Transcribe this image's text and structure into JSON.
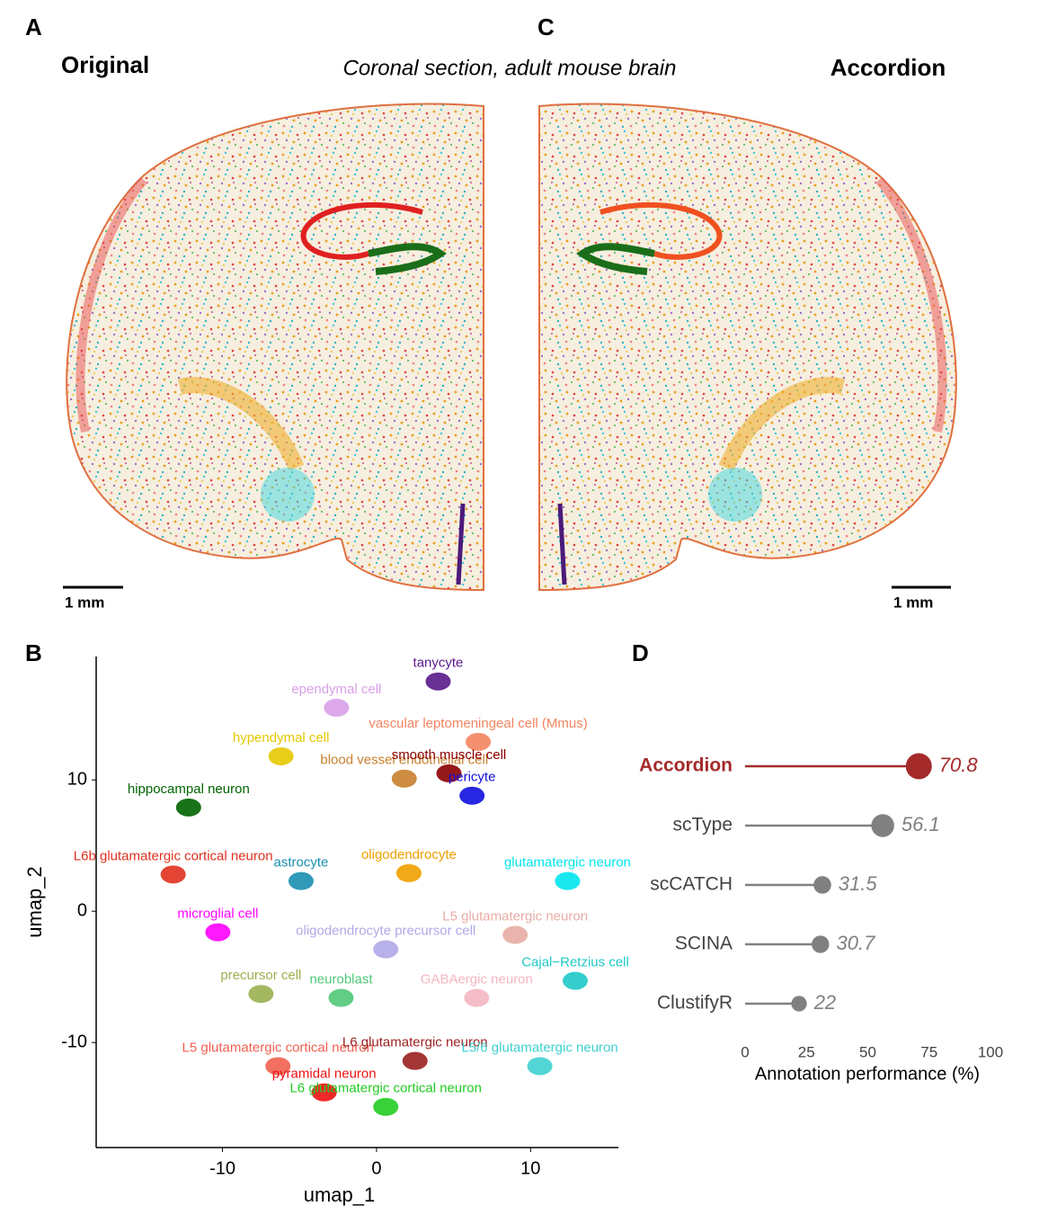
{
  "figure": {
    "panel_a": "A",
    "panel_a_title": "Original",
    "panel_c": "C",
    "subtitle": "Coronal section, adult mouse brain",
    "panel_c_title": "Accordion",
    "scale_left": "1 mm",
    "scale_right": "1 mm",
    "panel_b": "B",
    "panel_d": "D"
  },
  "chart_data": [
    {
      "type": "scatter",
      "xlabel": "umap_1",
      "ylabel": "umap_2",
      "xlim": [
        -18.2,
        15.7
      ],
      "ylim": [
        -18,
        19.4
      ],
      "xticks": [
        -10,
        0,
        10
      ],
      "yticks": [
        -10,
        0,
        10
      ],
      "series": [
        {
          "name": "tanycyte",
          "color": "#5a1a8a",
          "x": [
            4.0
          ],
          "values": [
            17.5
          ]
        },
        {
          "name": "ependymal cell",
          "color": "#d9a0e8",
          "x": [
            -2.6
          ],
          "values": [
            15.5
          ]
        },
        {
          "name": "vascular leptomeningeal cell (Mmus)",
          "color": "#f4845f",
          "x": [
            6.6
          ],
          "values": [
            12.9
          ]
        },
        {
          "name": "hypendymal cell",
          "color": "#e6c800",
          "x": [
            -6.2
          ],
          "values": [
            11.8
          ]
        },
        {
          "name": "blood vessel endothelial cell",
          "color": "#c87f2e",
          "x": [
            1.8
          ],
          "values": [
            10.1
          ]
        },
        {
          "name": "smooth muscle cell",
          "color": "#8b0000",
          "x": [
            4.7
          ],
          "values": [
            10.5
          ]
        },
        {
          "name": "hippocampal neuron",
          "color": "#006400",
          "x": [
            -12.2
          ],
          "values": [
            7.9
          ]
        },
        {
          "name": "pericyte",
          "color": "#1010e0",
          "x": [
            6.2
          ],
          "values": [
            8.8
          ]
        },
        {
          "name": "astrocyte",
          "color": "#1a8fb0",
          "x": [
            -4.9
          ],
          "values": [
            2.3
          ]
        },
        {
          "name": "oligodendrocyte",
          "color": "#f0a000",
          "x": [
            2.1
          ],
          "values": [
            2.9
          ]
        },
        {
          "name": "L6b glutamatergic cortical neuron",
          "color": "#e0301e",
          "x": [
            -13.2
          ],
          "values": [
            2.8
          ]
        },
        {
          "name": "glutamatergic neuron",
          "color": "#00e5ee",
          "x": [
            12.4
          ],
          "values": [
            2.3
          ]
        },
        {
          "name": "L5 glutamatergic neuron",
          "color": "#e8aca4",
          "x": [
            9.0
          ],
          "values": [
            -1.8
          ]
        },
        {
          "name": "microglial cell",
          "color": "#ff00ff",
          "x": [
            -10.3
          ],
          "values": [
            -1.6
          ]
        },
        {
          "name": "oligodendrocyte precursor cell",
          "color": "#b0a8e8",
          "x": [
            0.6
          ],
          "values": [
            -2.9
          ]
        },
        {
          "name": "Cajal−Retzius cell",
          "color": "#20c8c8",
          "x": [
            12.9
          ],
          "values": [
            -5.3
          ]
        },
        {
          "name": "precursor cell",
          "color": "#9ab050",
          "x": [
            -7.5
          ],
          "values": [
            -6.3
          ]
        },
        {
          "name": "neuroblast",
          "color": "#50c878",
          "x": [
            -2.3
          ],
          "values": [
            -6.6
          ]
        },
        {
          "name": "GABAergic neuron",
          "color": "#f4b6c2",
          "x": [
            6.5
          ],
          "values": [
            -6.6
          ]
        },
        {
          "name": "L5 glutamatergic cortical neuron",
          "color": "#f06050",
          "x": [
            -6.4
          ],
          "values": [
            -11.8
          ]
        },
        {
          "name": "L6 glutamatergic neuron",
          "color": "#9a1f1f",
          "x": [
            2.5
          ],
          "values": [
            -11.4
          ]
        },
        {
          "name": "L5/6 glutamatergic neuron",
          "color": "#40d0d0",
          "x": [
            10.6
          ],
          "values": [
            -11.8
          ]
        },
        {
          "name": "pyramidal neuron",
          "color": "#ee1111",
          "x": [
            -3.4
          ],
          "values": [
            -13.8
          ]
        },
        {
          "name": "L6 glutamatergic cortical neuron",
          "color": "#22cc22",
          "x": [
            0.6
          ],
          "values": [
            -14.9
          ]
        }
      ]
    },
    {
      "type": "lollipop",
      "xlabel": "Annotation performance (%)",
      "categories": [
        "Accordion",
        "scType",
        "scCATCH",
        "SCINA",
        "ClustifyR"
      ],
      "values": [
        70.8,
        56.1,
        31.5,
        30.7,
        22
      ],
      "colors": [
        "#a52a2a",
        "#808080",
        "#808080",
        "#808080",
        "#808080"
      ],
      "xlim": [
        0,
        100
      ],
      "xticks": [
        0,
        25,
        50,
        75,
        100
      ]
    }
  ]
}
